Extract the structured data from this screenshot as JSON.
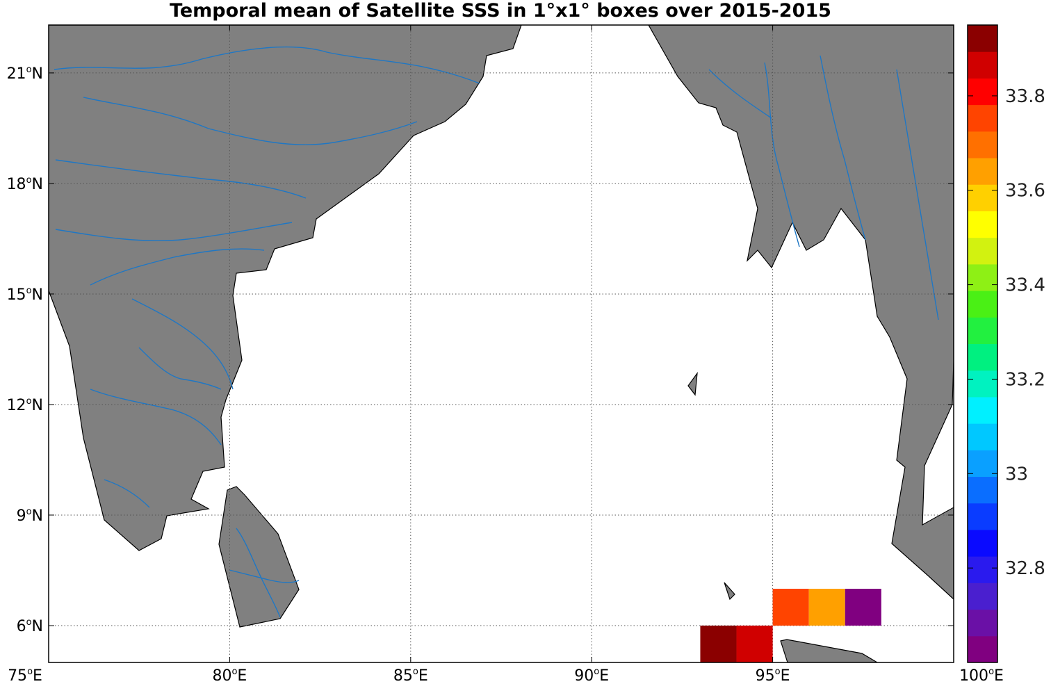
{
  "title": "Temporal mean of Satellite SSS in 1°x1° boxes over 2015-2015",
  "map": {
    "lon_range": [
      75,
      100
    ],
    "lat_range": [
      5,
      22.3
    ],
    "land_color": "#808080",
    "river_color": "#1f77c4",
    "grid": true,
    "x_ticks": [
      {
        "value": 75,
        "label": "75",
        "suffix": "E"
      },
      {
        "value": 80,
        "label": "80",
        "suffix": "E"
      },
      {
        "value": 85,
        "label": "85",
        "suffix": "E"
      },
      {
        "value": 90,
        "label": "90",
        "suffix": "E"
      },
      {
        "value": 95,
        "label": "95",
        "suffix": "E"
      },
      {
        "value": 100,
        "label": "100",
        "suffix": "E"
      }
    ],
    "y_ticks": [
      {
        "value": 6,
        "label": "6",
        "suffix": "N"
      },
      {
        "value": 9,
        "label": "9",
        "suffix": "N"
      },
      {
        "value": 12,
        "label": "12",
        "suffix": "N"
      },
      {
        "value": 15,
        "label": "15",
        "suffix": "N"
      },
      {
        "value": 18,
        "label": "18",
        "suffix": "N"
      },
      {
        "value": 21,
        "label": "21",
        "suffix": "N"
      }
    ],
    "degree_symbol": "o"
  },
  "chart_data": {
    "type": "heatmap",
    "title": "Temporal mean of Satellite SSS in 1°x1° boxes over 2015-2015",
    "cells": [
      {
        "lon": 93,
        "lat": 5,
        "value": 33.93
      },
      {
        "lon": 94,
        "lat": 5,
        "value": 33.85
      },
      {
        "lon": 95,
        "lat": 6,
        "value": 33.76
      },
      {
        "lon": 96,
        "lat": 6,
        "value": 33.65
      },
      {
        "lon": 97,
        "lat": 6,
        "value": 32.62
      }
    ],
    "colorbar": {
      "range": [
        32.6,
        33.95
      ],
      "ticks": [
        "32.8",
        "33",
        "33.2",
        "33.4",
        "33.6",
        "33.8"
      ],
      "tick_values": [
        32.8,
        33.0,
        33.2,
        33.4,
        33.6,
        33.8
      ],
      "colors": [
        "#800080",
        "#6a10a6",
        "#4a1fcf",
        "#2a1aee",
        "#0a0aff",
        "#0a3cff",
        "#0a6eff",
        "#0aa0ff",
        "#00c8ff",
        "#00f0ff",
        "#00f2c0",
        "#00f080",
        "#22f040",
        "#4af015",
        "#8ef015",
        "#d2f210",
        "#ffff00",
        "#ffd000",
        "#ffa000",
        "#ff7000",
        "#ff4400",
        "#ff0000",
        "#d00000",
        "#8b0000"
      ]
    }
  }
}
